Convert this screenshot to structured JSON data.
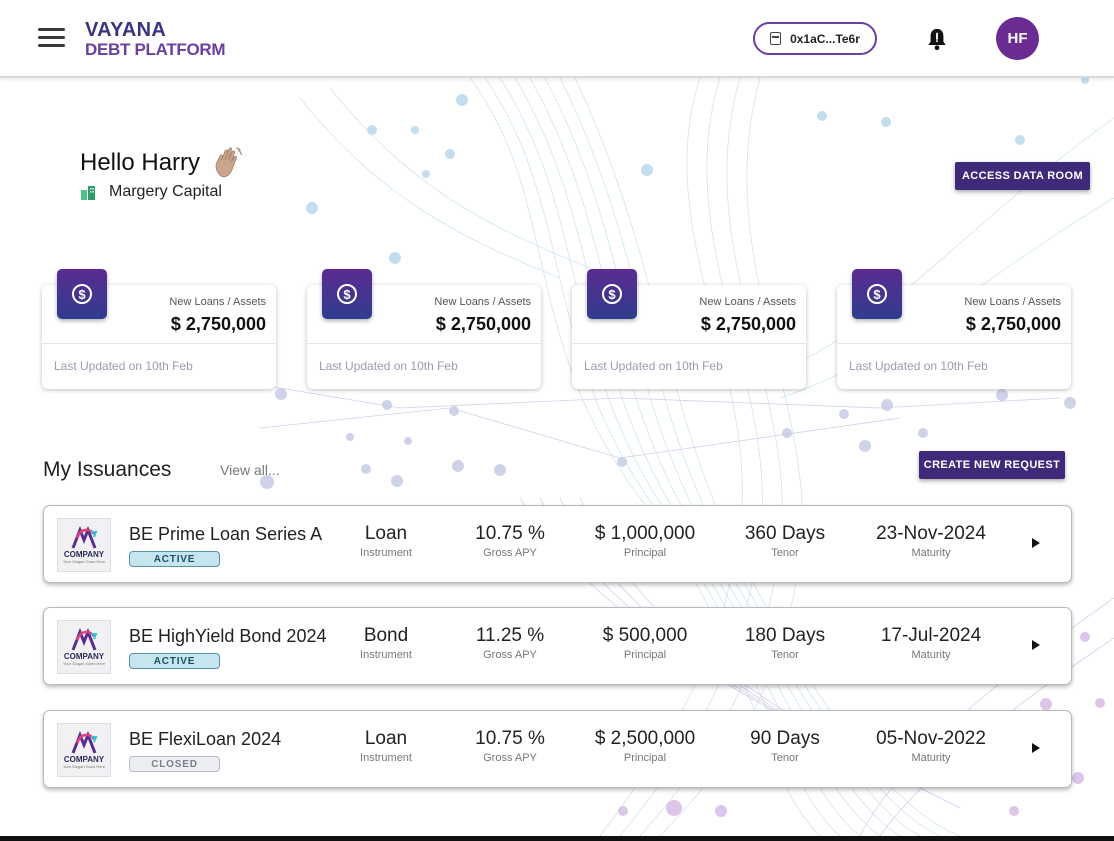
{
  "header": {
    "logo_line1": "VAYANA",
    "logo_line2": "DEBT PLATFORM",
    "wallet_address": "0x1aC...Te6r",
    "avatar_initials": "HF"
  },
  "greeting": {
    "text": "Hello Harry",
    "company": "Margery Capital"
  },
  "buttons": {
    "access_data_room": "ACCESS DATA ROOM",
    "create_new_request": "CREATE NEW REQUEST"
  },
  "stat_cards": [
    {
      "label": "New Loans / Assets",
      "value": "$ 2,750,000",
      "updated": "Last Updated on 10th Feb"
    },
    {
      "label": "New Loans / Assets",
      "value": "$ 2,750,000",
      "updated": "Last Updated on 10th Feb"
    },
    {
      "label": "New Loans / Assets",
      "value": "$ 2,750,000",
      "updated": "Last Updated on 10th Feb"
    },
    {
      "label": "New Loans / Assets",
      "value": "$ 2,750,000",
      "updated": "Last Updated on 10th Feb"
    }
  ],
  "issuances": {
    "title": "My Issuances",
    "view_all": "View all...",
    "logo_name": "COMPANY",
    "logo_slogan": "Your Slogan Goes Here",
    "column_labels": {
      "instrument": "Instrument",
      "gross_apy": "Gross APY",
      "principal": "Principal",
      "tenor": "Tenor",
      "maturity": "Maturity"
    },
    "rows": [
      {
        "name": "BE Prime Loan Series A",
        "status": "ACTIVE",
        "instrument": "Loan",
        "gross_apy": "10.75 %",
        "principal": "$ 1,000,000",
        "tenor": "360 Days",
        "maturity": "23-Nov-2024"
      },
      {
        "name": "BE HighYield Bond 2024",
        "status": "ACTIVE",
        "instrument": "Bond",
        "gross_apy": "11.25 %",
        "principal": "$ 500,000",
        "tenor": "180 Days",
        "maturity": "17-Jul-2024"
      },
      {
        "name": "BE FlexiLoan 2024",
        "status": "CLOSED",
        "instrument": "Loan",
        "gross_apy": "10.75 %",
        "principal": "$ 2,500,000",
        "tenor": "90 Days",
        "maturity": "05-Nov-2022"
      }
    ]
  },
  "colors": {
    "brand_dark": "#3f2a7a",
    "brand_purple": "#6a3fa0",
    "avatar": "#6a2c91",
    "active_badge": "#c5e6ef",
    "closed_badge": "#eceef2"
  }
}
